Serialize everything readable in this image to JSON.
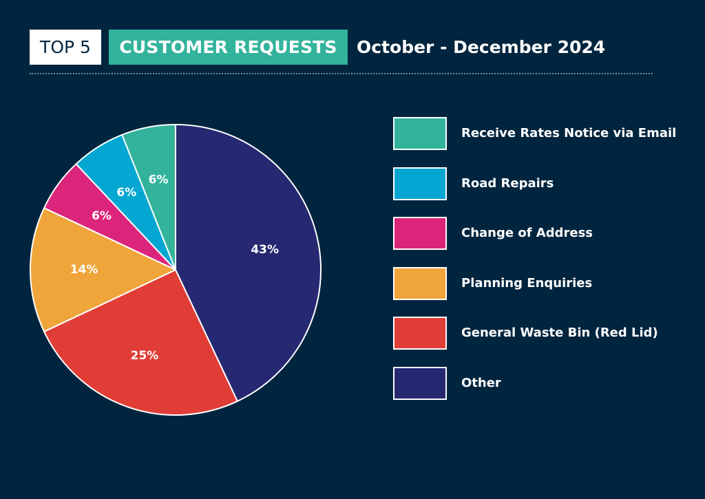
{
  "header": {
    "badge_top": "TOP 5",
    "badge_category": "CUSTOMER REQUESTS",
    "period": "October - December 2024"
  },
  "chart_data": {
    "type": "pie",
    "title": "TOP 5 CUSTOMER REQUESTS October - December 2024",
    "legend_position": "right",
    "slices": [
      {
        "label": "Other",
        "value": 43,
        "display": "43%",
        "color": "#272872"
      },
      {
        "label": "General Waste Bin (Red Lid)",
        "value": 25,
        "display": "25%",
        "color": "#e03d36"
      },
      {
        "label": "Planning Enquiries",
        "value": 14,
        "display": "14%",
        "color": "#f0a53a"
      },
      {
        "label": "Change of Address",
        "value": 6,
        "display": "6%",
        "color": "#db257b"
      },
      {
        "label": "Road Repairs",
        "value": 6,
        "display": "6%",
        "color": "#03a7d1"
      },
      {
        "label": "Receive Rates Notice via Email",
        "value": 6,
        "display": "6%",
        "color": "#33b39c"
      }
    ],
    "legend_order": [
      "Receive Rates Notice via Email",
      "Road Repairs",
      "Change of Address",
      "Planning Enquiries",
      "General Waste Bin (Red Lid)",
      "Other"
    ]
  }
}
